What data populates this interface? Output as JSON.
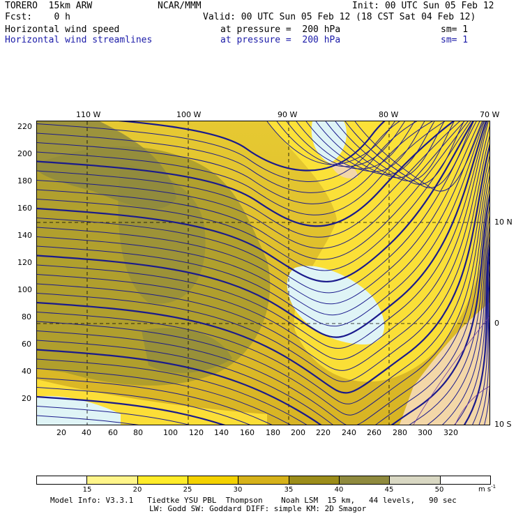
{
  "header": {
    "title_left": "TORERO  15km ARW",
    "org": "NCAR/MMM",
    "init": "Init: 00 UTC Sun 05 Feb 12",
    "fcst": "Fcst:    0 h",
    "valid": "Valid: 00 UTC Sun 05 Feb 12 (18 CST Sat 04 Feb 12)",
    "field1_name": "Horizontal wind speed",
    "field1_level": "at pressure =  200 hPa",
    "field1_sm": "sm= 1",
    "field2_name": "Horizontal wind streamlines",
    "field2_level": "at pressure =  200 hPa",
    "field2_sm": "sm= 1"
  },
  "map": {
    "lon_labels": [
      "110 W",
      "100 W",
      "90 W",
      "80 W",
      "70 W"
    ],
    "lat_labels": [
      "10 N",
      "0",
      "10 S"
    ],
    "y_ticks": [
      "220",
      "200",
      "180",
      "160",
      "140",
      "120",
      "100",
      "80",
      "60",
      "40",
      "20"
    ],
    "x_ticks": [
      "20",
      "40",
      "60",
      "80",
      "100",
      "120",
      "140",
      "160",
      "180",
      "200",
      "220",
      "240",
      "260",
      "280",
      "300",
      "320"
    ]
  },
  "colorbar": {
    "colors": [
      "#ffffff",
      "#fff58a",
      "#ffec2a",
      "#f4d200",
      "#d6b21a",
      "#9c8d1a",
      "#8f8a3e",
      "#d9d8c3",
      "#ffffff"
    ],
    "labels": [
      "15",
      "20",
      "25",
      "30",
      "35",
      "40",
      "45",
      "50"
    ],
    "unit": "m s",
    "unit_exp": "-1"
  },
  "footer": {
    "line1": "Model Info: V3.3.1   Tiedtke YSU PBL  Thompson    Noah LSM  15 km,   44 levels,   90 sec",
    "line2": "LW: Godd SW: Goddard DIFF: simple KM: 2D Smagor"
  }
}
